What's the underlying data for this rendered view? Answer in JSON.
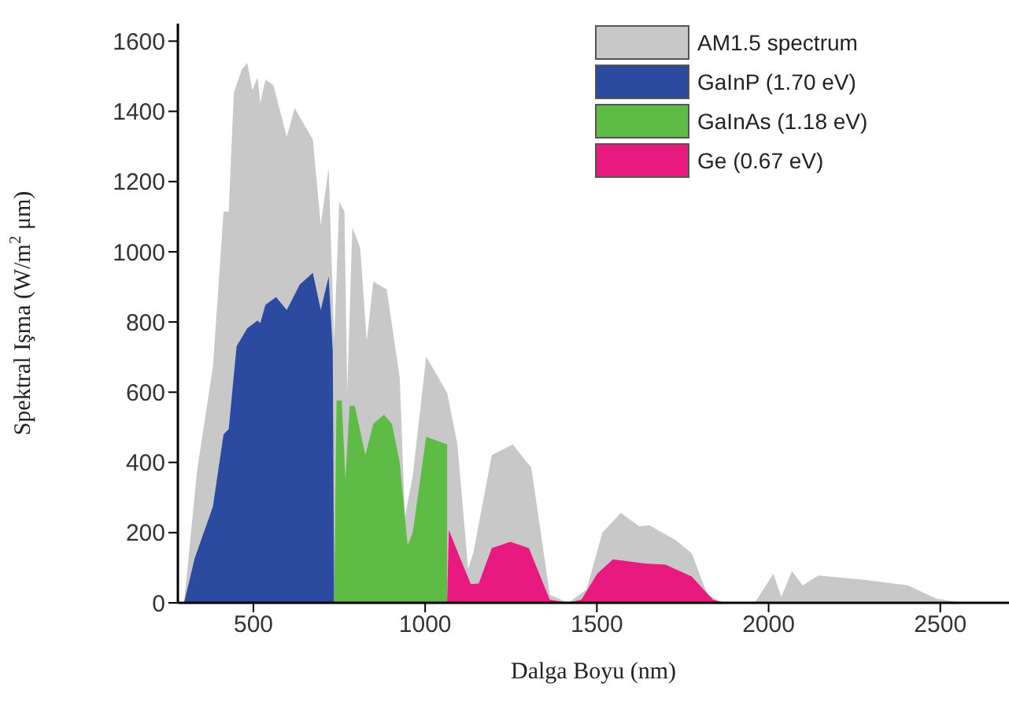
{
  "chart_data": {
    "type": "area",
    "xlabel": "Dalga Boyu (nm)",
    "ylabel": "Spektral Işma  (W/m$^{2}$ μm)",
    "xlim": [
      280,
      2700
    ],
    "xticks": [
      500,
      1000,
      1500,
      2000,
      2500
    ],
    "ylim": [
      0,
      1650
    ],
    "yticks": [
      0,
      200,
      400,
      600,
      800,
      1000,
      1200,
      1400,
      1600
    ],
    "grid": false,
    "legend": "top right",
    "series": [
      {
        "name": "AM1.5 spectrum",
        "color": "#c8c8c8",
        "x": [
          298,
          336,
          382,
          413,
          428,
          443,
          466,
          482,
          497,
          512,
          520,
          535,
          558,
          597,
          620,
          673,
          696,
          719,
          735,
          750,
          765,
          773,
          788,
          811,
          830,
          849,
          888,
          926,
          941,
          964,
          1003,
          1064,
          1094,
          1125,
          1140,
          1194,
          1255,
          1309,
          1363,
          1416,
          1470,
          1516,
          1570,
          1623,
          1653,
          1730,
          1776,
          1822,
          1868,
          1960,
          2014,
          2037,
          2068,
          2099,
          2145,
          2283,
          2405,
          2489,
          2566
        ],
        "values": [
          0,
          377,
          672,
          1114,
          1114,
          1453,
          1519,
          1538,
          1460,
          1497,
          1423,
          1490,
          1475,
          1327,
          1409,
          1320,
          1077,
          1239,
          746,
          1143,
          1114,
          598,
          1070,
          1011,
          746,
          915,
          893,
          642,
          244,
          362,
          701,
          598,
          451,
          97,
          141,
          421,
          451,
          385,
          23,
          0,
          38,
          200,
          256,
          218,
          221,
          178,
          141,
          23,
          0,
          0,
          83,
          16,
          90,
          50,
          78,
          65,
          50,
          12,
          0
        ]
      },
      {
        "name": "GaInP (1.70 eV)",
        "color": "#2b4aa0",
        "x": [
          298,
          329,
          382,
          413,
          428,
          451,
          482,
          512,
          520,
          535,
          566,
          597,
          635,
          673,
          696,
          719,
          731,
          735
        ],
        "values": [
          0,
          127,
          274,
          480,
          495,
          731,
          782,
          804,
          797,
          849,
          871,
          834,
          907,
          940,
          834,
          929,
          716,
          0
        ]
      },
      {
        "name": "GaInAs (1.18 eV)",
        "color": "#5dbb46",
        "x": [
          735,
          742,
          757,
          768,
          780,
          795,
          826,
          849,
          880,
          903,
          926,
          949,
          964,
          1003,
          1064,
          1064
        ],
        "values": [
          0,
          576,
          576,
          348,
          561,
          561,
          421,
          510,
          536,
          510,
          399,
          164,
          200,
          473,
          451,
          0
        ]
      },
      {
        "name": "Ge (0.67 eV)",
        "color": "#e8197f",
        "x": [
          1064,
          1069,
          1072,
          1102,
          1133,
          1156,
          1194,
          1248,
          1302,
          1363,
          1416,
          1455,
          1501,
          1547,
          1639,
          1700,
          1776,
          1838,
          1868
        ],
        "values": [
          0,
          208,
          200,
          127,
          53,
          55,
          156,
          174,
          156,
          9,
          0,
          9,
          83,
          124,
          112,
          109,
          75,
          9,
          0
        ]
      }
    ]
  }
}
